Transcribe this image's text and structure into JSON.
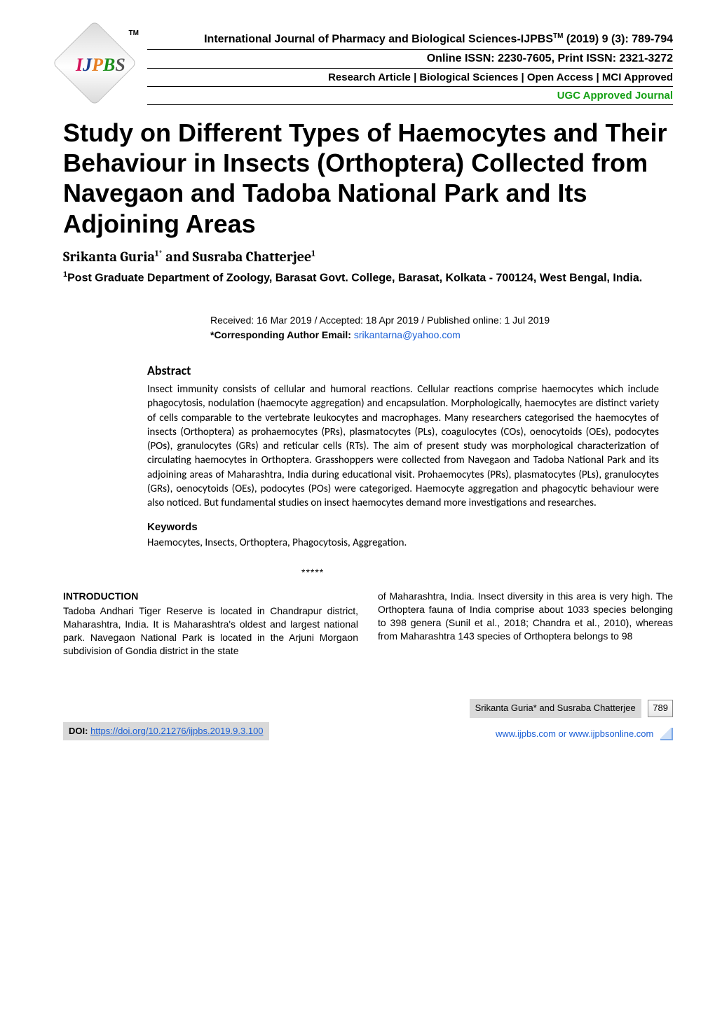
{
  "header": {
    "logo_tm": "TM",
    "logo_letters": {
      "i": "I",
      "j": "J",
      "p": "P",
      "b": "B",
      "s": "S"
    },
    "line1_pre": "International Journal of Pharmacy and Biological Sciences-IJPBS",
    "line1_sup": "TM",
    "line1_post": " (2019) 9 (3): 789-794",
    "line2": "Online ISSN: 2230-7605, Print ISSN: 2321-3272",
    "line3": "Research Article | Biological Sciences | Open Access | MCI Approved",
    "line4": "UGC Approved Journal"
  },
  "title": "Study on Different Types of Haemocytes and Their Behaviour in Insects (Orthoptera) Collected from Navegaon and Tadoba National Park and Its Adjoining Areas",
  "authors": {
    "a1_name": "Srikanta Guria",
    "a1_sup": "1*",
    "and": " and ",
    "a2_name": "Susraba Chatterjee",
    "a2_sup": "1"
  },
  "affiliation": {
    "sup": "1",
    "text": "Post Graduate Department of Zoology, Barasat Govt. College, Barasat, Kolkata - 700124, West Bengal, India."
  },
  "dates": {
    "received": "Received: 16 Mar 2019 / Accepted: 18 Apr 2019 / Published online: 1 Jul 2019",
    "corr_label": "*Corresponding Author Email: ",
    "corr_email": "srikantarna@yahoo.com"
  },
  "abstract": {
    "head": "Abstract",
    "body": "Insect immunity consists of cellular and humoral reactions. Cellular reactions comprise haemocytes which include phagocytosis, nodulation (haemocyte aggregation) and encapsulation. Morphologically, haemocytes are distinct variety of cells comparable to the vertebrate leukocytes and macrophages. Many researchers categorised the haemocytes of insects (Orthoptera) as prohaemocytes (PRs), plasmatocytes (PLs), coagulocytes (COs), oenocytoids (OEs), podocytes (POs), granulocytes (GRs) and reticular cells (RTs). The aim of present study was morphological characterization of circulating haemocytes in Orthoptera. Grasshoppers were collected from Navegaon and Tadoba National Park and its adjoining areas of Maharashtra, India during educational visit. Prohaemocytes (PRs), plasmatocytes (PLs), granulocytes (GRs), oenocytoids (OEs), podocytes (POs) were categoriged. Haemocyte aggregation and phagocytic behaviour were also noticed. But fundamental studies on insect haemocytes demand more investigations and researches."
  },
  "keywords": {
    "head": "Keywords",
    "body": "Haemocytes, Insects, Orthoptera, Phagocytosis, Aggregation."
  },
  "stars": "*****",
  "intro": {
    "head": "INTRODUCTION",
    "col1": "Tadoba Andhari Tiger Reserve is located in Chandrapur district, Maharashtra, India. It is Maharashtra's oldest and largest national park. Navegaon National Park is located in the Arjuni Morgaon subdivision of Gondia district in the state",
    "col2": "of Maharashtra, India. Insect diversity in this area is very high. The Orthoptera fauna of India comprise about 1033 species belonging to 398 genera (Sunil et al., 2018; Chandra et al., 2010), whereas from Maharashtra 143 species of Orthoptera belongs to 98"
  },
  "footer": {
    "doi_label": "DOI: ",
    "doi_url": "https://doi.org/10.21276/ijpbs.2019.9.3.100",
    "authors_foot": "Srikanta Guria* and Susraba Chatterjee",
    "page_num": "789",
    "site": "www.ijpbs.com or www.ijpbsonline.com"
  },
  "colors": {
    "ugc_green": "#14a014",
    "link_blue": "#1a5fd6",
    "footer_grey": "#d9d9d9"
  }
}
